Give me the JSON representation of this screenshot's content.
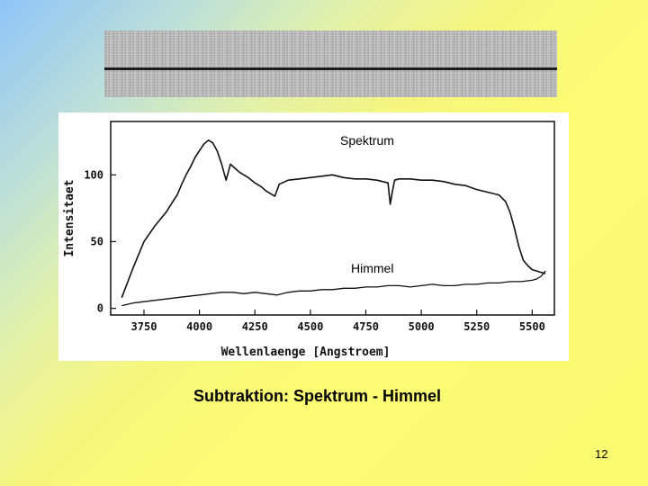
{
  "slide": {
    "caption": "Subtraktion: Spektrum - Himmel",
    "page_number": "12"
  },
  "annotations": {
    "spectrum_label": "Spektrum",
    "sky_label": "Himmel"
  },
  "chart_data": {
    "type": "line",
    "xlabel": "Wellenlaenge [Angstroem]",
    "ylabel": "Intensitaet",
    "xlim": [
      3600,
      5600
    ],
    "ylim": [
      -5,
      140
    ],
    "x_ticks": [
      3750,
      4000,
      4250,
      4500,
      4750,
      5000,
      5250,
      5500
    ],
    "y_ticks": [
      0,
      50,
      100
    ],
    "grid": false,
    "series": [
      {
        "name": "Spektrum",
        "x": [
          3650,
          3700,
          3750,
          3800,
          3850,
          3880,
          3900,
          3920,
          3940,
          3960,
          3980,
          4000,
          4020,
          4040,
          4060,
          4080,
          4100,
          4120,
          4140,
          4160,
          4180,
          4200,
          4220,
          4250,
          4280,
          4300,
          4320,
          4340,
          4360,
          4400,
          4450,
          4500,
          4550,
          4600,
          4650,
          4700,
          4750,
          4800,
          4850,
          4860,
          4870,
          4880,
          4900,
          4950,
          5000,
          5050,
          5100,
          5150,
          5200,
          5250,
          5300,
          5350,
          5380,
          5400,
          5420,
          5440,
          5460,
          5480,
          5500,
          5520,
          5540,
          5560
        ],
        "y": [
          8,
          30,
          50,
          62,
          72,
          80,
          85,
          93,
          100,
          106,
          113,
          118,
          123,
          126,
          124,
          118,
          108,
          96,
          108,
          105,
          102,
          100,
          98,
          94,
          91,
          88,
          86,
          84,
          93,
          96,
          97,
          98,
          99,
          100,
          98,
          97,
          97,
          96,
          94,
          78,
          88,
          96,
          97,
          97,
          96,
          96,
          95,
          93,
          92,
          89,
          87,
          85,
          80,
          72,
          60,
          46,
          36,
          32,
          29,
          28,
          27,
          26
        ]
      },
      {
        "name": "Himmel",
        "x": [
          3650,
          3700,
          3750,
          3800,
          3850,
          3900,
          3950,
          4000,
          4050,
          4100,
          4150,
          4200,
          4250,
          4300,
          4350,
          4400,
          4450,
          4500,
          4550,
          4600,
          4650,
          4700,
          4750,
          4800,
          4850,
          4900,
          4950,
          5000,
          5050,
          5100,
          5150,
          5200,
          5250,
          5300,
          5350,
          5400,
          5450,
          5500,
          5520,
          5540,
          5560
        ],
        "y": [
          2,
          4,
          5,
          6,
          7,
          8,
          9,
          10,
          11,
          12,
          12,
          11,
          12,
          11,
          10,
          12,
          13,
          13,
          14,
          14,
          15,
          15,
          16,
          16,
          17,
          17,
          16,
          17,
          18,
          17,
          17,
          18,
          18,
          19,
          19,
          20,
          20,
          21,
          22,
          24,
          28
        ]
      }
    ]
  }
}
